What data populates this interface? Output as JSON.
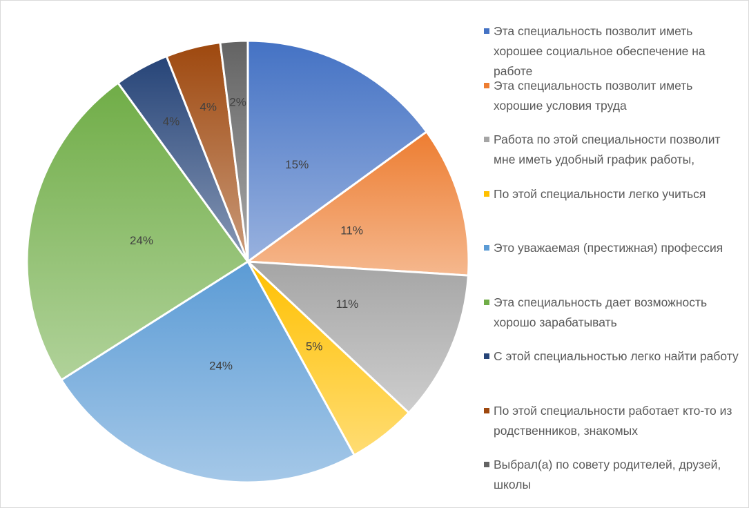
{
  "chart_data": {
    "type": "pie",
    "categories": [
      "Эта специальность позволит иметь хорошее социальное обеспечение на работе",
      " Эта специальность позволит иметь хорошие условия труда",
      "Работа по этой специальности позволит мне иметь удобный график работы,",
      "По этой специальности легко учиться",
      "Это уважаемая (престижная) профессия",
      "Эта специальность дает возможность хорошо зарабатывать",
      "С этой специальностью легко найти работу",
      "По этой специальности работает кто-то из родственников, знакомых",
      "Выбрал(а) по совету родителей, друзей, школы"
    ],
    "values": [
      15,
      11,
      11,
      5,
      24,
      24,
      4,
      4,
      2
    ],
    "value_labels": [
      "15%",
      "11%",
      "11%",
      "5%",
      "24%",
      "24%",
      "4%",
      "4%",
      "2%"
    ],
    "colors": [
      "#4472c4",
      "#ed7d31",
      "#a5a5a5",
      "#ffc000",
      "#5b9bd5",
      "#70ad47",
      "#264478",
      "#9e480e",
      "#636363"
    ],
    "legend": "right"
  }
}
